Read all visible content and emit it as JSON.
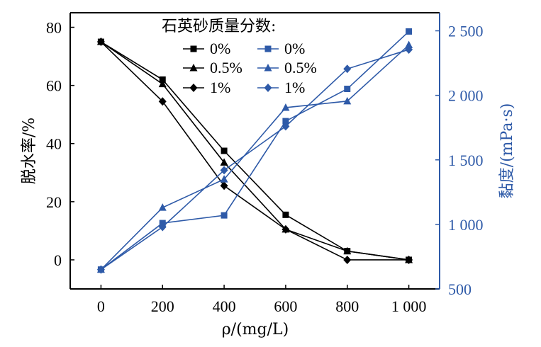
{
  "chart_data": {
    "type": "line",
    "x": [
      0,
      200,
      400,
      600,
      800,
      1000
    ],
    "xlabel": "ρ/(mg/L)",
    "ylabel_left": "脱水率/%",
    "ylabel_right": "黏度/(mPa·s)",
    "xlim": [
      -100,
      1100
    ],
    "ylim_left": [
      -10,
      85
    ],
    "ylim_right": [
      500,
      2640
    ],
    "x_ticks": [
      0,
      200,
      400,
      600,
      800,
      1000
    ],
    "x_tick_labels": [
      "0",
      "200",
      "400",
      "600",
      "800",
      "1 000"
    ],
    "y_left_ticks": [
      0,
      20,
      40,
      60,
      80
    ],
    "y_left_tick_labels": [
      "0",
      "20",
      "40",
      "60",
      "80"
    ],
    "y_right_ticks": [
      500,
      1000,
      1500,
      2000,
      2500
    ],
    "y_right_tick_labels": [
      "500",
      "1 000",
      "1 500",
      "2 000",
      "2 500"
    ],
    "legend_title": "石英砂质量分数:",
    "legend_position": "top-center",
    "colors": {
      "black": "#000000",
      "blue": "#2e5aa8"
    },
    "series": [
      {
        "name": "0%",
        "axis": "left",
        "marker": "square",
        "color": "#000000",
        "values": [
          75,
          62,
          37.5,
          15.5,
          3,
          0
        ]
      },
      {
        "name": "0.5%",
        "axis": "left",
        "marker": "triangle",
        "color": "#000000",
        "values": [
          75,
          60.5,
          33.5,
          10.5,
          3,
          0
        ]
      },
      {
        "name": "1%",
        "axis": "left",
        "marker": "diamond",
        "color": "#000000",
        "values": [
          75,
          54.5,
          25.5,
          10.5,
          0,
          0
        ]
      },
      {
        "name": "0%",
        "axis": "right",
        "marker": "square",
        "color": "#2e5aa8",
        "values": [
          650,
          1010,
          1070,
          1800,
          2050,
          2495
        ]
      },
      {
        "name": "0.5%",
        "axis": "right",
        "marker": "triangle",
        "color": "#2e5aa8",
        "values": [
          650,
          1130,
          1350,
          1905,
          1955,
          2390
        ]
      },
      {
        "name": "1%",
        "axis": "right",
        "marker": "diamond",
        "color": "#2e5aa8",
        "values": [
          650,
          980,
          1420,
          1760,
          2205,
          2355
        ]
      }
    ]
  }
}
